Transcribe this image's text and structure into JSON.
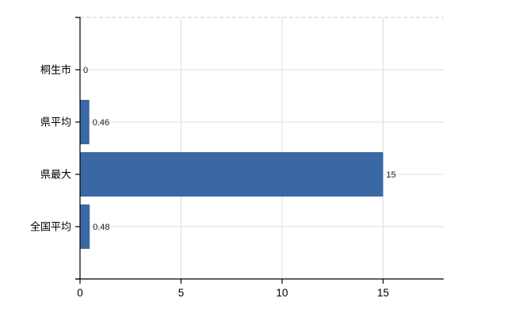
{
  "chart_data": {
    "type": "bar",
    "orientation": "horizontal",
    "title": "",
    "categories": [
      "桐生市",
      "県平均",
      "県最大",
      "全国平均"
    ],
    "values": [
      0,
      0.46,
      15,
      0.48
    ],
    "value_labels": [
      "0",
      "0.46",
      "15",
      "0.48"
    ],
    "xlabel": "",
    "ylabel": "",
    "xlim": [
      0,
      18
    ],
    "xticks": [
      0,
      5,
      10,
      15
    ],
    "xtick_labels": [
      "0",
      "5",
      "10",
      "15"
    ],
    "grid": "on",
    "legend": "none",
    "colors": {
      "bar": "#3a68a4",
      "grid": "#dcdcdc",
      "frame_dash": "#cccccc",
      "axis": "#000000",
      "text": "#000000",
      "background": "#ffffff"
    }
  }
}
